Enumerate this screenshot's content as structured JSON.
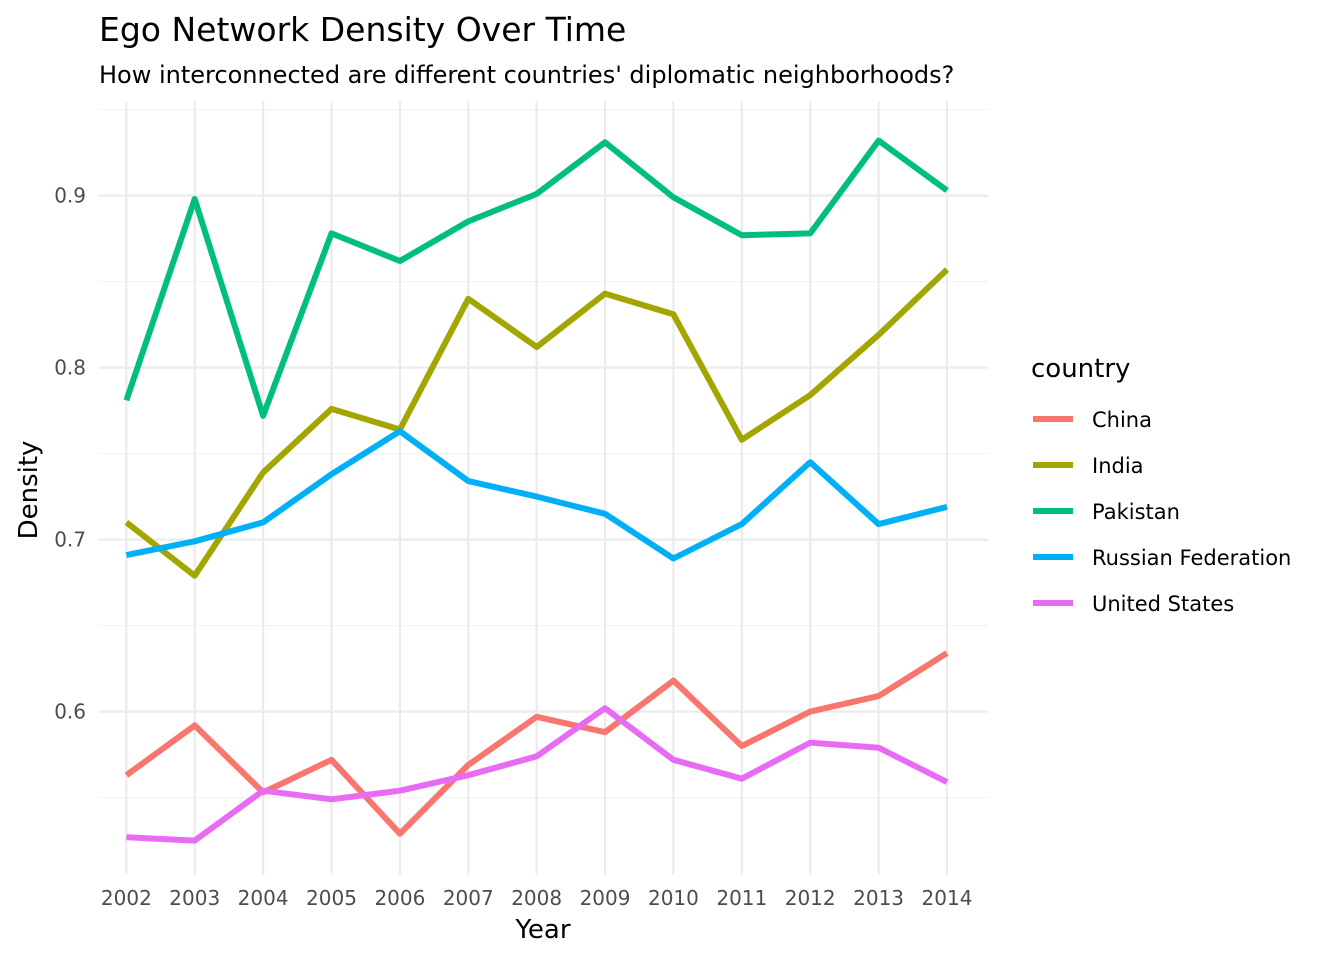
{
  "chart_data": {
    "type": "line",
    "title": "Ego Network Density Over Time",
    "subtitle": "How interconnected are different countries' diplomatic neighborhoods?",
    "xlabel": "Year",
    "ylabel": "Density",
    "x": [
      2002,
      2003,
      2004,
      2005,
      2006,
      2007,
      2008,
      2009,
      2010,
      2011,
      2012,
      2013,
      2014
    ],
    "xlim": [
      2001.6,
      2014.6
    ],
    "ylim": [
      0.505,
      0.955
    ],
    "yticks": [
      0.6,
      0.7,
      0.8,
      0.9
    ],
    "ytick_labels": [
      "0.6",
      "0.7",
      "0.8",
      "0.9"
    ],
    "grid": true,
    "legend_title": "country",
    "legend_position": "right",
    "series": [
      {
        "name": "China",
        "color": "#F8766D",
        "values": [
          0.563,
          0.592,
          0.553,
          0.572,
          0.529,
          0.569,
          0.597,
          0.588,
          0.618,
          0.58,
          0.6,
          0.609,
          0.634
        ]
      },
      {
        "name": "India",
        "color": "#A3A500",
        "values": [
          0.71,
          0.679,
          0.739,
          0.776,
          0.764,
          0.84,
          0.812,
          0.843,
          0.831,
          0.758,
          0.784,
          0.819,
          0.857
        ]
      },
      {
        "name": "Pakistan",
        "color": "#00BF7D",
        "values": [
          0.781,
          0.898,
          0.772,
          0.878,
          0.862,
          0.885,
          0.901,
          0.931,
          0.899,
          0.877,
          0.878,
          0.932,
          0.903
        ]
      },
      {
        "name": "Russian Federation",
        "color": "#00B0F6",
        "values": [
          0.691,
          0.699,
          0.71,
          0.738,
          0.763,
          0.734,
          0.725,
          0.715,
          0.689,
          0.709,
          0.745,
          0.709,
          0.719
        ]
      },
      {
        "name": "United States",
        "color": "#E76BF3",
        "values": [
          0.527,
          0.525,
          0.554,
          0.549,
          0.554,
          0.563,
          0.574,
          0.602,
          0.572,
          0.561,
          0.582,
          0.579,
          0.559
        ]
      }
    ]
  }
}
